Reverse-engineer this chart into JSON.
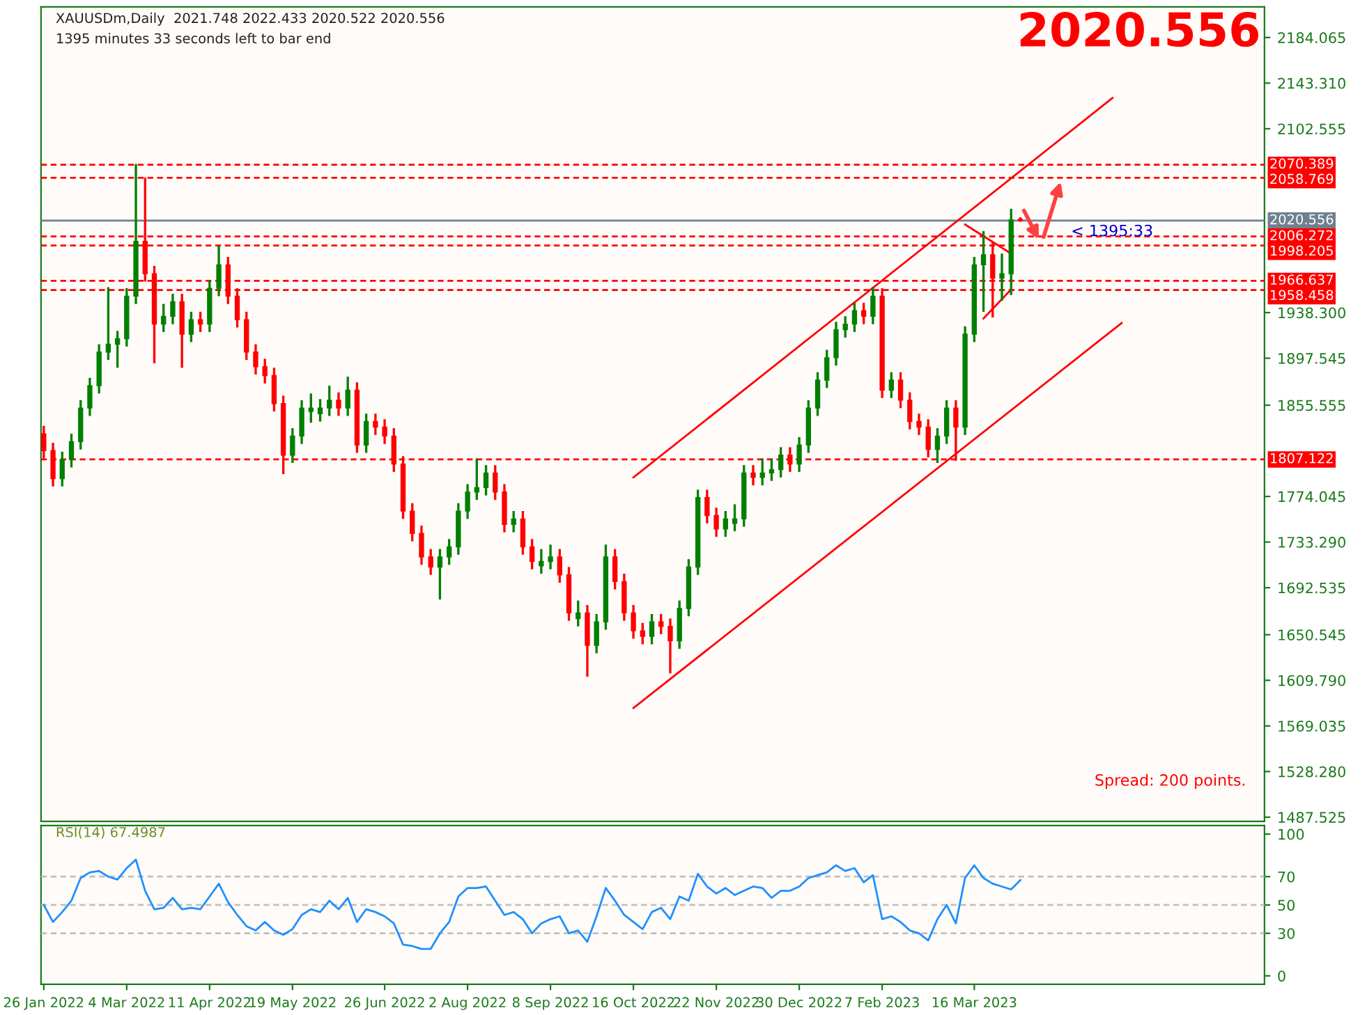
{
  "chart_data": [
    {
      "type": "candlestick",
      "title": "XAUUSDm,Daily  2021.748 2022.433 2020.522 2020.556",
      "subtitle": "1395 minutes 33 seconds left to bar end",
      "categories": [
        null,
        null,
        null,
        null,
        null,
        null,
        null,
        null,
        null,
        null,
        null,
        null,
        null,
        null,
        null,
        null,
        null,
        null,
        null,
        null,
        null,
        null,
        null,
        null,
        null,
        null,
        null,
        null,
        null,
        null,
        null,
        null,
        null,
        null,
        null,
        null,
        null,
        null,
        null,
        null,
        null,
        null,
        null,
        null,
        null,
        null,
        null,
        null,
        null,
        null,
        null,
        null,
        null,
        null,
        null,
        null,
        null,
        null,
        null,
        null,
        null,
        null,
        null,
        null,
        null,
        null,
        null,
        null,
        null,
        null,
        null,
        null,
        null,
        null,
        null,
        null,
        null,
        null,
        null,
        null,
        null,
        null,
        null,
        null,
        null,
        null,
        null,
        null,
        null,
        null,
        null,
        null,
        null,
        null,
        null,
        null,
        null,
        null,
        null,
        null,
        null,
        null,
        null,
        null,
        null,
        null,
        null,
        null,
        null,
        null,
        null,
        null,
        null,
        null,
        null,
        null,
        null,
        null,
        null,
        null,
        null,
        null,
        null,
        null,
        null,
        null,
        null,
        null,
        null,
        null,
        null,
        null,
        null
      ],
      "ohlc": [
        [
          1830,
          1836,
          1809,
          1815
        ],
        [
          1815,
          1821,
          1784,
          1790
        ],
        [
          1790,
          1813,
          1784,
          1807
        ],
        [
          1807,
          1829,
          1801,
          1823
        ],
        [
          1823,
          1859,
          1817,
          1853
        ],
        [
          1853,
          1879,
          1847,
          1873
        ],
        [
          1873,
          1909,
          1867,
          1903
        ],
        [
          1903,
          1960,
          1897,
          1910
        ],
        [
          1910,
          1921,
          1890,
          1915
        ],
        [
          1915,
          1959,
          1909,
          1953
        ],
        [
          1953,
          2070,
          1947,
          2002
        ],
        [
          2002,
          2058,
          1967,
          1973
        ],
        [
          1973,
          1979,
          1894,
          1928
        ],
        [
          1928,
          1945,
          1922,
          1935
        ],
        [
          1935,
          1954,
          1929,
          1948
        ],
        [
          1948,
          1954,
          1890,
          1919
        ],
        [
          1919,
          1938,
          1913,
          1932
        ],
        [
          1932,
          1938,
          1922,
          1928
        ],
        [
          1928,
          1966,
          1922,
          1960
        ],
        [
          1960,
          1997,
          1954,
          1981
        ],
        [
          1981,
          1987,
          1947,
          1953
        ],
        [
          1953,
          1959,
          1926,
          1932
        ],
        [
          1932,
          1938,
          1897,
          1903
        ],
        [
          1903,
          1909,
          1884,
          1890
        ],
        [
          1890,
          1896,
          1876,
          1882
        ],
        [
          1882,
          1888,
          1851,
          1857
        ],
        [
          1857,
          1863,
          1795,
          1811
        ],
        [
          1811,
          1834,
          1805,
          1828
        ],
        [
          1828,
          1859,
          1822,
          1853
        ],
        [
          1850,
          1865,
          1841,
          1853
        ],
        [
          1848,
          1860,
          1842,
          1853
        ],
        [
          1853,
          1872,
          1847,
          1860
        ],
        [
          1860,
          1866,
          1847,
          1853
        ],
        [
          1853,
          1880,
          1847,
          1869
        ],
        [
          1869,
          1875,
          1814,
          1820
        ],
        [
          1820,
          1847,
          1814,
          1841
        ],
        [
          1841,
          1847,
          1830,
          1836
        ],
        [
          1836,
          1842,
          1822,
          1828
        ],
        [
          1828,
          1834,
          1797,
          1803
        ],
        [
          1803,
          1809,
          1755,
          1761
        ],
        [
          1761,
          1767,
          1735,
          1741
        ],
        [
          1741,
          1747,
          1714,
          1720
        ],
        [
          1720,
          1726,
          1705,
          1711
        ],
        [
          1711,
          1726,
          1683,
          1720
        ],
        [
          1720,
          1735,
          1714,
          1729
        ],
        [
          1729,
          1767,
          1723,
          1761
        ],
        [
          1761,
          1784,
          1755,
          1778
        ],
        [
          1778,
          1807,
          1772,
          1782
        ],
        [
          1782,
          1801,
          1776,
          1795
        ],
        [
          1795,
          1801,
          1772,
          1778
        ],
        [
          1778,
          1784,
          1743,
          1749
        ],
        [
          1749,
          1760,
          1743,
          1754
        ],
        [
          1754,
          1760,
          1723,
          1729
        ],
        [
          1729,
          1735,
          1710,
          1716
        ],
        [
          1712,
          1726,
          1706,
          1716
        ],
        [
          1716,
          1730,
          1710,
          1720
        ],
        [
          1720,
          1726,
          1698,
          1704
        ],
        [
          1704,
          1710,
          1664,
          1670
        ],
        [
          1665,
          1680,
          1659,
          1670
        ],
        [
          1670,
          1676,
          1614,
          1641
        ],
        [
          1641,
          1668,
          1635,
          1662
        ],
        [
          1662,
          1730,
          1656,
          1720
        ],
        [
          1720,
          1726,
          1692,
          1698
        ],
        [
          1698,
          1704,
          1664,
          1670
        ],
        [
          1670,
          1676,
          1648,
          1654
        ],
        [
          1654,
          1660,
          1643,
          1649
        ],
        [
          1649,
          1668,
          1643,
          1662
        ],
        [
          1662,
          1668,
          1652,
          1658
        ],
        [
          1658,
          1664,
          1617,
          1645
        ],
        [
          1645,
          1680,
          1639,
          1674
        ],
        [
          1674,
          1717,
          1668,
          1711
        ],
        [
          1711,
          1779,
          1705,
          1773
        ],
        [
          1773,
          1779,
          1751,
          1757
        ],
        [
          1757,
          1763,
          1739,
          1745
        ],
        [
          1745,
          1760,
          1739,
          1754
        ],
        [
          1750,
          1766,
          1744,
          1754
        ],
        [
          1754,
          1801,
          1748,
          1795
        ],
        [
          1795,
          1801,
          1785,
          1791
        ],
        [
          1791,
          1807,
          1785,
          1795
        ],
        [
          1795,
          1807,
          1789,
          1798
        ],
        [
          1798,
          1817,
          1792,
          1811
        ],
        [
          1811,
          1817,
          1797,
          1803
        ],
        [
          1803,
          1826,
          1797,
          1820
        ],
        [
          1820,
          1859,
          1814,
          1853
        ],
        [
          1853,
          1884,
          1847,
          1878
        ],
        [
          1878,
          1904,
          1872,
          1898
        ],
        [
          1898,
          1929,
          1892,
          1923
        ],
        [
          1923,
          1934,
          1917,
          1928
        ],
        [
          1928,
          1946,
          1922,
          1940
        ],
        [
          1940,
          1946,
          1929,
          1935
        ],
        [
          1935,
          1960,
          1929,
          1953
        ],
        [
          1953,
          1959,
          1863,
          1869
        ],
        [
          1869,
          1884,
          1863,
          1878
        ],
        [
          1878,
          1884,
          1854,
          1860
        ],
        [
          1860,
          1866,
          1835,
          1841
        ],
        [
          1841,
          1847,
          1830,
          1836
        ],
        [
          1836,
          1842,
          1810,
          1816
        ],
        [
          1816,
          1834,
          1805,
          1828
        ],
        [
          1828,
          1859,
          1822,
          1853
        ],
        [
          1853,
          1859,
          1807,
          1836
        ],
        [
          1836,
          1925,
          1830,
          1919
        ],
        [
          1919,
          1987,
          1913,
          1981
        ],
        [
          1981,
          2010,
          1940,
          1990
        ],
        [
          1990,
          2000,
          1935,
          1969
        ],
        [
          1969,
          1990,
          1950,
          1973
        ],
        [
          1973,
          2030,
          1955,
          2021
        ],
        [
          2021.748,
          2022.433,
          2020.522,
          2020.556
        ],
        null,
        null,
        null,
        null,
        null,
        null,
        null,
        null,
        null,
        null,
        null,
        null,
        null,
        null,
        null,
        null,
        null,
        null,
        null,
        null,
        null,
        null,
        null,
        null,
        null,
        null
      ],
      "colors": [
        "#ff0000",
        "#ff0000",
        "#008000",
        "#008000",
        "#008000",
        "#008000",
        "#008000",
        "#008000",
        "#008000",
        "#008000",
        "#008000",
        "#ff0000",
        "#ff0000",
        "#008000",
        "#008000",
        "#ff0000",
        "#008000",
        "#ff0000",
        "#008000",
        "#008000",
        "#ff0000",
        "#ff0000",
        "#ff0000",
        "#ff0000",
        "#ff0000",
        "#ff0000",
        "#ff0000",
        "#008000",
        "#008000",
        "#008000",
        "#008000",
        "#008000",
        "#ff0000",
        "#008000",
        "#ff0000",
        "#008000",
        "#ff0000",
        "#ff0000",
        "#ff0000",
        "#ff0000",
        "#ff0000",
        "#ff0000",
        "#ff0000",
        "#008000",
        "#008000",
        "#008000",
        "#008000",
        "#008000",
        "#008000",
        "#ff0000",
        "#ff0000",
        "#008000",
        "#ff0000",
        "#ff0000",
        "#008000",
        "#008000",
        "#ff0000",
        "#ff0000",
        "#008000",
        "#ff0000",
        "#008000",
        "#008000",
        "#ff0000",
        "#ff0000",
        "#ff0000",
        "#ff0000",
        "#008000",
        "#ff0000",
        "#ff0000",
        "#008000",
        "#008000",
        "#008000",
        "#ff0000",
        "#ff0000",
        "#008000",
        "#008000",
        "#008000",
        "#ff0000",
        "#008000",
        "#008000",
        "#008000",
        "#ff0000",
        "#008000",
        "#008000",
        "#008000",
        "#008000",
        "#008000",
        "#008000",
        "#008000",
        "#ff0000",
        "#008000",
        "#ff0000",
        "#008000",
        "#ff0000",
        "#ff0000",
        "#ff0000",
        "#ff0000",
        "#008000",
        "#008000",
        "#ff0000",
        "#008000",
        "#008000",
        "#008000",
        "#ff0000",
        "#008000",
        "#008000",
        "#ff0000",
        null,
        null,
        null,
        null,
        null,
        null,
        null,
        null,
        null,
        null,
        null,
        null,
        null,
        null,
        null,
        null,
        null,
        null,
        null,
        null,
        null,
        null,
        null,
        null,
        null,
        null
      ],
      "series": [
        {
          "type": "line",
          "color": "#ff0000",
          "values": [
            null,
            null,
            null,
            null,
            null,
            null,
            null,
            null,
            null,
            null,
            null,
            null,
            null,
            null,
            null,
            null,
            null,
            null,
            null,
            null,
            null,
            null,
            null,
            null,
            null,
            null,
            null,
            null,
            null,
            null,
            null,
            null,
            null,
            null,
            null,
            null,
            null,
            null,
            null,
            null,
            null,
            null,
            null,
            null,
            null,
            null,
            null,
            null,
            null,
            null,
            null,
            null,
            null,
            null,
            null,
            null,
            null,
            null,
            null,
            null,
            null,
            null,
            null,
            null,
            1791,
            null,
            null,
            null,
            null,
            null,
            null,
            null,
            null,
            null,
            null,
            null,
            null,
            null,
            null,
            null,
            null,
            null,
            null,
            null,
            null,
            null,
            null,
            null,
            null,
            null,
            null,
            null,
            null,
            null,
            null,
            null,
            null,
            null,
            null,
            null,
            null,
            null,
            null,
            null,
            null,
            null,
            null,
            null,
            null,
            null,
            null,
            null,
            null,
            null,
            null,
            null,
            2130,
            null,
            null,
            null,
            null,
            null,
            null,
            null,
            null,
            null,
            null,
            null,
            null,
            null,
            null,
            null,
            null
          ]
        },
        {
          "type": "line",
          "color": "#ff0000",
          "values": [
            null,
            null,
            null,
            null,
            null,
            null,
            null,
            null,
            null,
            null,
            null,
            null,
            null,
            null,
            null,
            null,
            null,
            null,
            null,
            null,
            null,
            null,
            null,
            null,
            null,
            null,
            null,
            null,
            null,
            null,
            null,
            null,
            null,
            null,
            null,
            null,
            null,
            null,
            null,
            null,
            null,
            null,
            null,
            null,
            null,
            null,
            null,
            null,
            null,
            null,
            null,
            null,
            null,
            null,
            null,
            null,
            null,
            null,
            null,
            null,
            null,
            null,
            null,
            null,
            1585,
            null,
            null,
            null,
            null,
            null,
            null,
            null,
            null,
            null,
            null,
            null,
            null,
            null,
            null,
            null,
            null,
            null,
            null,
            null,
            null,
            null,
            null,
            null,
            null,
            null,
            null,
            null,
            null,
            null,
            null,
            null,
            null,
            null,
            null,
            null,
            null,
            null,
            null,
            null,
            null,
            null,
            null,
            null,
            null,
            null,
            null,
            null,
            null,
            null,
            null,
            null,
            null,
            1929,
            null,
            null,
            null,
            null,
            null,
            null,
            null,
            null,
            null,
            null,
            null,
            null,
            null,
            null,
            null
          ]
        },
        {
          "type": "line",
          "color": "#ff0000",
          "values": [
            null,
            null,
            null,
            null,
            null,
            null,
            null,
            null,
            null,
            null,
            null,
            null,
            null,
            null,
            null,
            null,
            null,
            null,
            null,
            null,
            null,
            null,
            null,
            null,
            null,
            null,
            null,
            null,
            null,
            null,
            null,
            null,
            null,
            null,
            null,
            null,
            null,
            null,
            null,
            null,
            null,
            null,
            null,
            null,
            null,
            null,
            null,
            null,
            null,
            null,
            null,
            null,
            null,
            null,
            null,
            null,
            null,
            null,
            null,
            null,
            null,
            null,
            null,
            null,
            null,
            null,
            null,
            null,
            null,
            null,
            null,
            null,
            null,
            null,
            null,
            null,
            null,
            null,
            null,
            null,
            null,
            null,
            null,
            null,
            null,
            null,
            null,
            null,
            null,
            null,
            null,
            null,
            null,
            null,
            null,
            null,
            null,
            null,
            null,
            null,
            2017,
            null,
            null,
            null,
            null,
            1991,
            null,
            null,
            null,
            null,
            null,
            null,
            null,
            null,
            null,
            null,
            null,
            null,
            null,
            null,
            null,
            null,
            null,
            null,
            null,
            null,
            null,
            null,
            null,
            null,
            null,
            null,
            null
          ]
        },
        {
          "type": "line",
          "color": "#ff0000",
          "values": [
            null,
            null,
            null,
            null,
            null,
            null,
            null,
            null,
            null,
            null,
            null,
            null,
            null,
            null,
            null,
            null,
            null,
            null,
            null,
            null,
            null,
            null,
            null,
            null,
            null,
            null,
            null,
            null,
            null,
            null,
            null,
            null,
            null,
            null,
            null,
            null,
            null,
            null,
            null,
            null,
            null,
            null,
            null,
            null,
            null,
            null,
            null,
            null,
            null,
            null,
            null,
            null,
            null,
            null,
            null,
            null,
            null,
            null,
            null,
            null,
            null,
            null,
            null,
            null,
            null,
            null,
            null,
            null,
            null,
            null,
            null,
            null,
            null,
            null,
            null,
            null,
            null,
            null,
            null,
            null,
            null,
            null,
            null,
            null,
            null,
            null,
            null,
            null,
            null,
            null,
            null,
            null,
            null,
            null,
            null,
            null,
            null,
            null,
            null,
            null,
            null,
            null,
            1933,
            null,
            null,
            1959,
            null,
            null,
            null,
            null,
            null,
            null,
            null,
            null,
            null,
            null,
            null,
            null,
            null,
            null,
            null,
            null,
            null,
            null,
            null,
            null,
            null,
            null,
            null,
            null,
            null,
            null,
            null
          ]
        }
      ],
      "ylim": [
        1483.7,
        2211.4
      ],
      "yticks": [
        2184.065,
        {
          "value": 2143.31,
          "label": "2143.310"
        },
        2102.555,
        {
          "value": 1938.3,
          "label": "1938.300"
        },
        1897.545,
        1855.555,
        1774.045,
        {
          "value": 1733.29,
          "label": "1733.290"
        },
        1692.535,
        1650.545,
        {
          "value": 1609.79,
          "label": "1609.790"
        },
        1569.035,
        {
          "value": 1528.28,
          "label": "1528.280"
        },
        1487.525
      ],
      "tick_labels": "y",
      "ref_lines": [
        {
          "axis": "y",
          "value": 2070.389,
          "label": "2070.389",
          "color": "#ff0000",
          "line_style": "dashed"
        },
        {
          "axis": "y",
          "value": 2058.769,
          "label": "2058.769",
          "color": "#ff0000",
          "line_style": "dashed"
        },
        {
          "axis": "y",
          "value": 2020.556,
          "label": "2020.556",
          "color": "#708090",
          "line_style": "solid"
        },
        {
          "axis": "y",
          "value": 2006.272,
          "label": "2006.272",
          "color": "#ff0000",
          "line_style": "dashed"
        },
        {
          "axis": "y",
          "value": 1998.205,
          "label": "1998.205",
          "color": "#ff0000",
          "line_style": "dashed"
        },
        {
          "axis": "y",
          "value": 1966.637,
          "label": "1966.637",
          "color": "#ff0000",
          "line_style": "dashed"
        },
        {
          "axis": "y",
          "value": 1958.458,
          "label": "1958.458",
          "color": "#ff0000",
          "line_style": "dashed"
        },
        {
          "axis": "y",
          "value": 1807.122,
          "label": "1807.122",
          "color": "#ff0000",
          "line_style": "dashed"
        }
      ],
      "annotations": [
        "2020.556",
        "Spread: 200 points.",
        "< 1395:33"
      ]
    },
    {
      "type": "line",
      "title": "RSI(14) 67.4987",
      "categories": [
        "26 Jan 2022",
        null,
        null,
        null,
        null,
        null,
        null,
        null,
        null,
        "4 Mar 2022",
        null,
        null,
        null,
        null,
        null,
        null,
        null,
        null,
        "11 Apr 2022",
        null,
        null,
        null,
        null,
        null,
        null,
        null,
        null,
        "19 May 2022",
        null,
        null,
        null,
        null,
        null,
        null,
        null,
        null,
        null,
        "26 Jun 2022",
        null,
        null,
        null,
        null,
        null,
        null,
        null,
        null,
        "2 Aug 2022",
        null,
        null,
        null,
        null,
        null,
        null,
        null,
        null,
        "8 Sep 2022",
        null,
        null,
        null,
        null,
        null,
        null,
        null,
        null,
        "16 Oct 2022",
        null,
        null,
        null,
        null,
        null,
        null,
        null,
        null,
        "22 Nov 2022",
        null,
        null,
        null,
        null,
        null,
        null,
        null,
        null,
        "30 Dec 2022",
        null,
        null,
        null,
        null,
        null,
        null,
        null,
        null,
        "7 Feb 2023",
        null,
        null,
        null,
        null,
        null,
        null,
        null,
        null,
        null,
        "16 Mar 2023",
        null,
        null,
        null,
        null,
        null,
        null,
        null,
        null,
        null,
        null,
        null,
        null,
        null,
        null,
        null,
        null,
        null,
        null,
        null,
        null,
        null,
        null,
        null,
        null,
        null,
        null,
        null,
        null,
        null,
        null,
        null
      ],
      "series": [
        {
          "color": "#1e90ff",
          "values": [
            50,
            38,
            45,
            53,
            69,
            73,
            74,
            70,
            68,
            76,
            82,
            60,
            47,
            48,
            55,
            47,
            48,
            47,
            56,
            65,
            52,
            43,
            35,
            32,
            38,
            32,
            29,
            33,
            43,
            47,
            45,
            53,
            47,
            55,
            38,
            47,
            45,
            42,
            37,
            22,
            21,
            19,
            19,
            30,
            38,
            56,
            62,
            62,
            63,
            53,
            43,
            45,
            40,
            30,
            37,
            40,
            42,
            30,
            32,
            24,
            42,
            62,
            53,
            43,
            38,
            33,
            45,
            48,
            40,
            56,
            53,
            72,
            63,
            58,
            62,
            57,
            60,
            63,
            62,
            55,
            60,
            60,
            63,
            69,
            71,
            73,
            78,
            74,
            76,
            66,
            71,
            40,
            42,
            38,
            32,
            30,
            25,
            40,
            50,
            37,
            69,
            78,
            69,
            65,
            63,
            61,
            67.4987,
            null,
            null,
            null,
            null,
            null,
            null,
            null,
            null,
            null,
            null,
            null,
            null,
            null,
            null,
            null,
            null,
            null,
            null,
            null,
            null,
            null,
            null,
            null,
            null,
            null,
            null
          ]
        }
      ],
      "ylim": [
        -6,
        106
      ],
      "yticks": [
        100,
        70,
        50,
        30,
        0
      ],
      "ref_lines": [
        {
          "axis": "y",
          "value": 70,
          "color": "#c0c0c0",
          "line_style": "dashed"
        },
        {
          "axis": "y",
          "value": 50,
          "color": "#c0c0c0",
          "line_style": "dashed"
        },
        {
          "axis": "y",
          "value": 30,
          "color": "#c0c0c0",
          "line_style": "dashed"
        }
      ]
    }
  ]
}
